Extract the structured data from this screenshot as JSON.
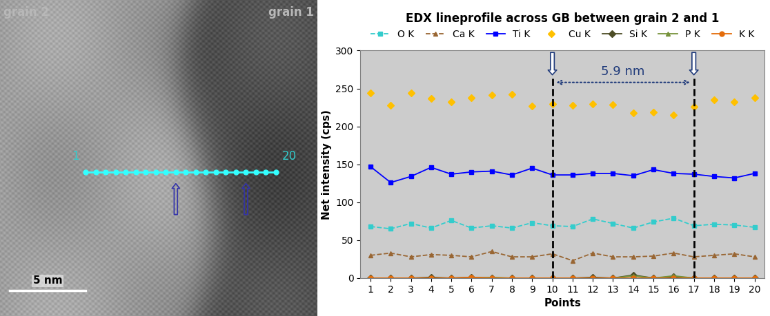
{
  "image": {
    "labels": {
      "left": "grain 2",
      "right": "grain 1"
    },
    "profile_line": {
      "first_point": 1,
      "last_point": 20,
      "arrows_at": [
        10,
        17
      ]
    },
    "scale_bar": {
      "label": "5 nm"
    }
  },
  "chart_data": {
    "type": "line",
    "title": "EDX lineprofile across GB between grain 2 and 1",
    "x_label": "Points",
    "y_label": "Net intensity (cps)",
    "x": [
      1,
      2,
      3,
      4,
      5,
      6,
      7,
      8,
      9,
      10,
      11,
      12,
      13,
      14,
      15,
      16,
      17,
      18,
      19,
      20
    ],
    "xlim": [
      0.5,
      20.5
    ],
    "xticks": [
      1,
      2,
      3,
      4,
      5,
      6,
      7,
      8,
      9,
      10,
      11,
      12,
      13,
      14,
      15,
      16,
      17,
      18,
      19,
      20
    ],
    "ylim": [
      0,
      300
    ],
    "yticks": [
      0,
      50,
      100,
      150,
      200,
      250,
      300
    ],
    "grid": false,
    "legend": "upper center",
    "annotations": [
      {
        "text": "5.9 nm",
        "x": [
          10,
          17
        ]
      }
    ],
    "series": [
      {
        "name": "O K",
        "color": "#33cccc",
        "marker": "square",
        "line_style": "dashed",
        "values": [
          68,
          65,
          72,
          66,
          76,
          66,
          69,
          66,
          73,
          69,
          68,
          78,
          72,
          66,
          74,
          79,
          69,
          71,
          70,
          67
        ]
      },
      {
        "name": "Ca K",
        "color": "#996633",
        "marker": "triangle",
        "line_style": "dashed",
        "values": [
          30,
          33,
          28,
          31,
          30,
          28,
          35,
          28,
          28,
          32,
          23,
          33,
          28,
          28,
          29,
          33,
          28,
          30,
          32,
          28
        ]
      },
      {
        "name": "Ti K",
        "color": "#0000ff",
        "marker": "square",
        "line_style": "solid",
        "values": [
          147,
          126,
          134,
          146,
          137,
          140,
          141,
          136,
          145,
          136,
          136,
          138,
          138,
          135,
          143,
          138,
          137,
          134,
          132,
          138
        ]
      },
      {
        "name": "Cu K",
        "color": "#ffc000",
        "marker": "diamond",
        "line_style": "none",
        "values": [
          244,
          228,
          244,
          237,
          232,
          238,
          241,
          242,
          227,
          230,
          228,
          230,
          229,
          218,
          219,
          215,
          226,
          235,
          232,
          238
        ]
      },
      {
        "name": "Si K",
        "color": "#4d4d26",
        "marker": "diamond",
        "line_style": "solid",
        "values": [
          0,
          0,
          0,
          1,
          0,
          1,
          0,
          0,
          0,
          0,
          0,
          1,
          0,
          4,
          0,
          2,
          0,
          0,
          0,
          0
        ]
      },
      {
        "name": "P K",
        "color": "#77933c",
        "marker": "triangle",
        "line_style": "solid",
        "values": [
          0,
          0,
          0,
          0,
          0,
          0,
          1,
          0,
          0,
          0,
          0,
          0,
          0,
          3,
          0,
          3,
          0,
          0,
          0,
          0
        ]
      },
      {
        "name": "K K",
        "color": "#e46c0a",
        "marker": "circle",
        "line_style": "solid",
        "values": [
          0,
          0,
          0,
          0,
          0,
          1,
          0,
          0,
          0,
          0,
          0,
          0,
          0,
          0,
          0,
          0,
          0,
          0,
          0,
          0
        ]
      }
    ]
  }
}
